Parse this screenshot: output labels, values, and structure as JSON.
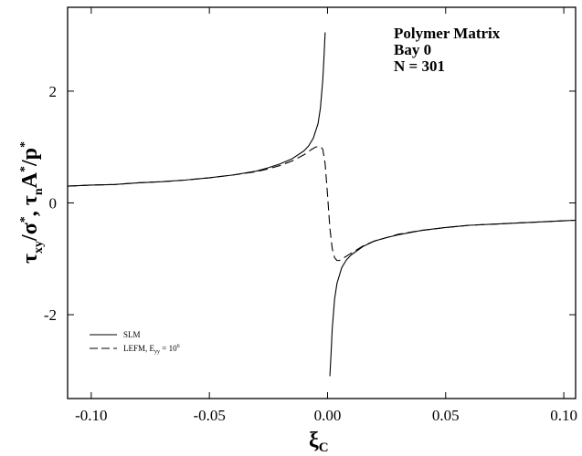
{
  "chart_data": {
    "type": "line",
    "xlabel": "ξ",
    "xlabel_sub": "C",
    "ylabel_parts": {
      "t1": "τ",
      "s1": "xy",
      "m1": "/σ",
      "p1": "*",
      "m2": ", τ",
      "s2": "n",
      "m3": "A",
      "p2": "*",
      "m4": "/p",
      "p3": "*"
    },
    "xlim": [
      -0.11,
      0.105
    ],
    "ylim": [
      -3.5,
      3.5
    ],
    "x_ticks": [
      {
        "value": -0.1,
        "label": "-0.10"
      },
      {
        "value": -0.05,
        "label": "-0.05"
      },
      {
        "value": 0.0,
        "label": "0.00"
      },
      {
        "value": 0.05,
        "label": "0.05"
      },
      {
        "value": 0.1,
        "label": "0.10"
      }
    ],
    "y_ticks": [
      {
        "value": -2,
        "label": "-2"
      },
      {
        "value": 0,
        "label": "0"
      },
      {
        "value": 2,
        "label": "2"
      }
    ],
    "annotation": [
      "Polymer Matrix",
      "Bay 0",
      "N = 301"
    ],
    "legend": {
      "position": "bottom-left",
      "entries": [
        {
          "label": "SLM"
        },
        {
          "label": "LEFM, E",
          "sub": "yy",
          "tail": " = 10",
          "sup": "6"
        }
      ]
    },
    "series": [
      {
        "style": "solid",
        "segments": [
          {
            "x": [
              -0.11,
              -0.1,
              -0.09,
              -0.08,
              -0.07,
              -0.06,
              -0.05,
              -0.04,
              -0.03,
              -0.025,
              -0.02,
              -0.015,
              -0.01,
              -0.008,
              -0.006,
              -0.004,
              -0.003,
              -0.002,
              -0.0015,
              -0.001
            ],
            "y": [
              0.3,
              0.32,
              0.33,
              0.36,
              0.38,
              0.41,
              0.45,
              0.5,
              0.57,
              0.63,
              0.7,
              0.79,
              0.93,
              1.02,
              1.16,
              1.42,
              1.7,
              2.2,
              2.6,
              3.05
            ]
          },
          {
            "x": [
              0.001,
              0.0015,
              0.002,
              0.003,
              0.004,
              0.006,
              0.008,
              0.01,
              0.015,
              0.02,
              0.025,
              0.03,
              0.04,
              0.05,
              0.06,
              0.07,
              0.08,
              0.09,
              0.1,
              0.105
            ],
            "y": [
              -3.1,
              -2.7,
              -2.25,
              -1.72,
              -1.44,
              -1.16,
              -1.02,
              -0.93,
              -0.78,
              -0.68,
              -0.62,
              -0.57,
              -0.49,
              -0.44,
              -0.4,
              -0.38,
              -0.36,
              -0.34,
              -0.32,
              -0.31
            ]
          }
        ]
      },
      {
        "style": "dashed",
        "segments": [
          {
            "x": [
              -0.11,
              -0.1,
              -0.09,
              -0.08,
              -0.07,
              -0.06,
              -0.05,
              -0.04,
              -0.03,
              -0.025,
              -0.02,
              -0.015,
              -0.01,
              -0.007,
              -0.005,
              -0.003,
              -0.002,
              -0.001,
              0.0,
              0.001,
              0.002,
              0.003,
              0.004,
              0.005,
              0.007,
              0.01,
              0.015,
              0.02,
              0.03,
              0.04,
              0.05,
              0.06,
              0.07,
              0.08,
              0.09,
              0.1,
              0.105
            ],
            "y": [
              0.3,
              0.32,
              0.33,
              0.36,
              0.38,
              0.41,
              0.45,
              0.5,
              0.56,
              0.61,
              0.67,
              0.75,
              0.86,
              0.95,
              1.0,
              1.01,
              0.96,
              0.7,
              0.15,
              -0.45,
              -0.82,
              -0.98,
              -1.03,
              -1.03,
              -0.98,
              -0.9,
              -0.77,
              -0.68,
              -0.56,
              -0.49,
              -0.44,
              -0.4,
              -0.38,
              -0.36,
              -0.34,
              -0.32,
              -0.31
            ]
          }
        ]
      }
    ]
  }
}
